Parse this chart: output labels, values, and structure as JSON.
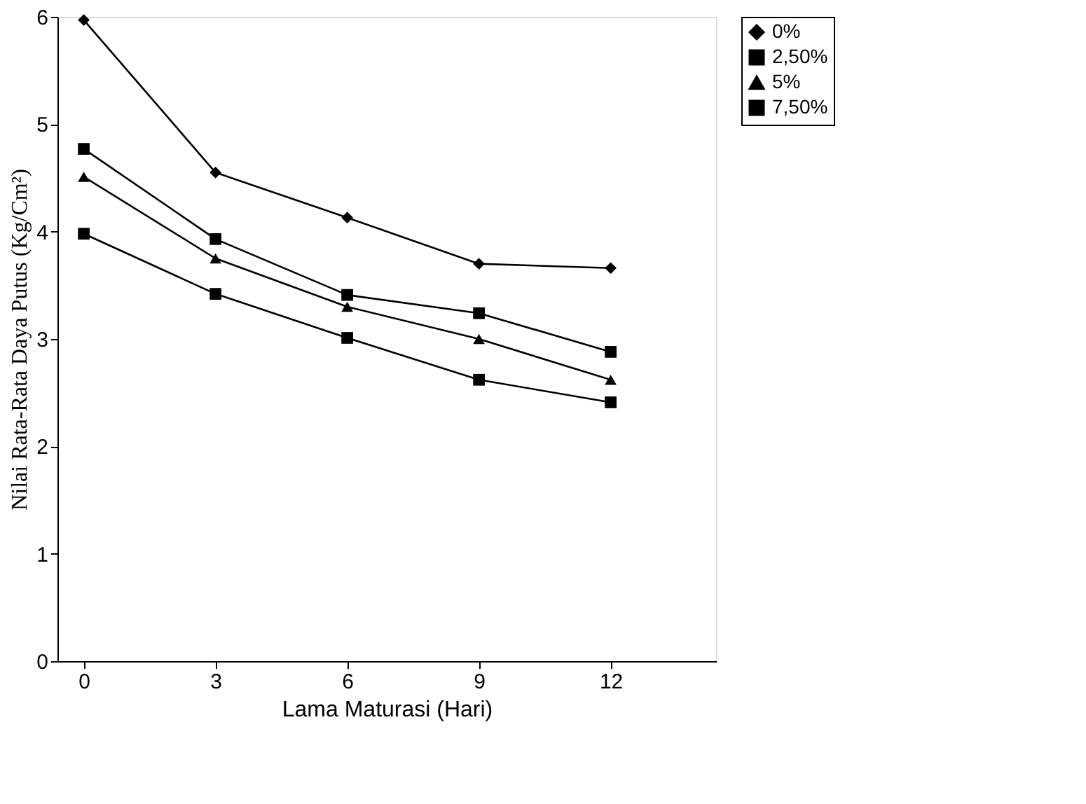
{
  "chart_data": {
    "type": "line",
    "xlabel": "Lama Maturasi (Hari)",
    "ylabel": "Nilai Rata-Rata  Daya Putus (Kg/Cm²)",
    "x": [
      0,
      3,
      6,
      9,
      12
    ],
    "xlim": [
      -0.6,
      14.4
    ],
    "xticks": [
      0,
      3,
      6,
      9,
      12
    ],
    "ylim": [
      0,
      6
    ],
    "yticks": [
      0,
      1,
      2,
      3,
      4,
      5,
      6
    ],
    "grid": false,
    "legend": "right",
    "line_style": "solid",
    "series": [
      {
        "name": "0%",
        "color": "#000000",
        "marker": "diamond",
        "values": [
          5.97,
          4.55,
          4.13,
          3.7,
          3.66
        ]
      },
      {
        "name": "2,50%",
        "color": "#000000",
        "marker": "square",
        "values": [
          4.77,
          3.93,
          3.41,
          3.24,
          2.88
        ]
      },
      {
        "name": "5%",
        "color": "#000000",
        "marker": "triangle",
        "values": [
          4.51,
          3.75,
          3.3,
          3.0,
          2.62
        ]
      },
      {
        "name": "7,50%",
        "color": "#000000",
        "marker": "square",
        "values": [
          3.98,
          3.42,
          3.01,
          2.62,
          2.41
        ]
      }
    ]
  }
}
